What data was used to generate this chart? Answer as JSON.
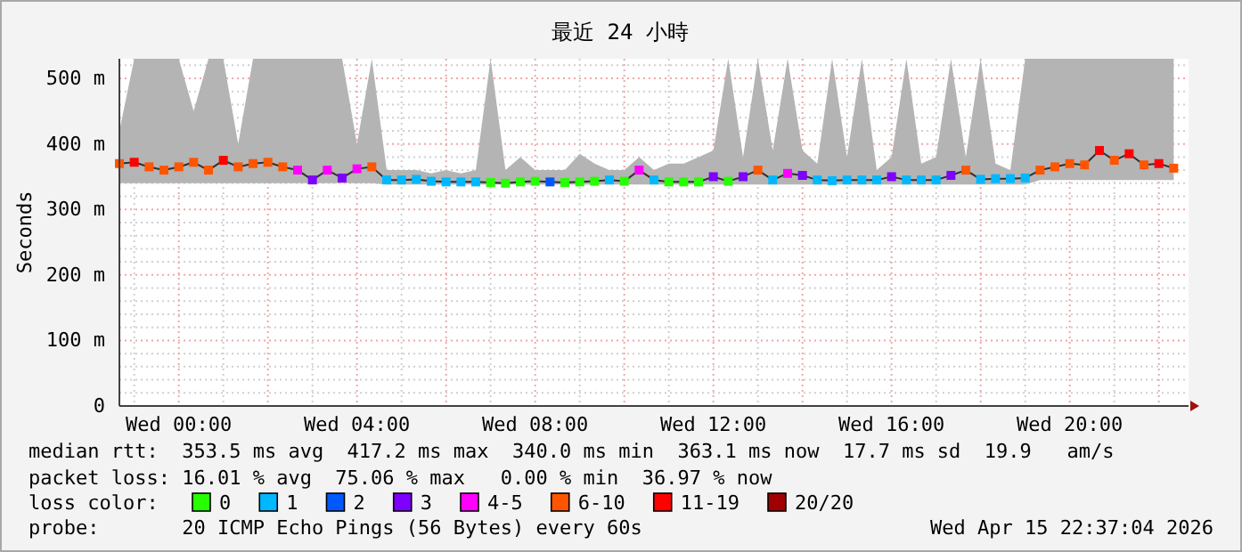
{
  "chart_data": {
    "type": "line",
    "title": "最近 24 小時",
    "ylabel": "Seconds",
    "legend_title": "loss color:",
    "legend": "bottom",
    "grid": true,
    "xlim": [
      "2026-04-14T22:40",
      "2026-04-15T22:40"
    ],
    "ylim": [
      0,
      530
    ],
    "xticks": [
      {
        "value": "2026-04-14T23:00",
        "label": null
      },
      {
        "value": "2026-04-15T00:00",
        "label": "Wed 00:00"
      },
      {
        "value": "2026-04-15T01:00",
        "label": null
      },
      {
        "value": "2026-04-15T02:00",
        "label": null
      },
      {
        "value": "2026-04-15T03:00",
        "label": null
      },
      {
        "value": "2026-04-15T04:00",
        "label": "Wed 04:00"
      },
      {
        "value": "2026-04-15T05:00",
        "label": null
      },
      {
        "value": "2026-04-15T06:00",
        "label": null
      },
      {
        "value": "2026-04-15T07:00",
        "label": null
      },
      {
        "value": "2026-04-15T08:00",
        "label": "Wed 08:00"
      },
      {
        "value": "2026-04-15T09:00",
        "label": null
      },
      {
        "value": "2026-04-15T10:00",
        "label": null
      },
      {
        "value": "2026-04-15T11:00",
        "label": null
      },
      {
        "value": "2026-04-15T12:00",
        "label": "Wed 12:00"
      },
      {
        "value": "2026-04-15T13:00",
        "label": null
      },
      {
        "value": "2026-04-15T14:00",
        "label": null
      },
      {
        "value": "2026-04-15T15:00",
        "label": null
      },
      {
        "value": "2026-04-15T16:00",
        "label": "Wed 16:00"
      },
      {
        "value": "2026-04-15T17:00",
        "label": null
      },
      {
        "value": "2026-04-15T18:00",
        "label": null
      },
      {
        "value": "2026-04-15T19:00",
        "label": null
      },
      {
        "value": "2026-04-15T20:00",
        "label": "Wed 20:00"
      },
      {
        "value": "2026-04-15T21:00",
        "label": null
      },
      {
        "value": "2026-04-15T22:00",
        "label": null
      }
    ],
    "yticks": [
      {
        "value": 0,
        "label": "0"
      },
      {
        "value": 20,
        "label": null
      },
      {
        "value": 40,
        "label": null
      },
      {
        "value": 60,
        "label": null
      },
      {
        "value": 80,
        "label": null
      },
      {
        "value": 100,
        "label": "100 m"
      },
      {
        "value": 120,
        "label": null
      },
      {
        "value": 140,
        "label": null
      },
      {
        "value": 160,
        "label": null
      },
      {
        "value": 180,
        "label": null
      },
      {
        "value": 200,
        "label": "200 m"
      },
      {
        "value": 220,
        "label": null
      },
      {
        "value": 240,
        "label": null
      },
      {
        "value": 260,
        "label": null
      },
      {
        "value": 280,
        "label": null
      },
      {
        "value": 300,
        "label": "300 m"
      },
      {
        "value": 320,
        "label": null
      },
      {
        "value": 340,
        "label": null
      },
      {
        "value": 360,
        "label": null
      },
      {
        "value": 380,
        "label": null
      },
      {
        "value": 400,
        "label": "400 m"
      },
      {
        "value": 420,
        "label": null
      },
      {
        "value": 440,
        "label": null
      },
      {
        "value": 460,
        "label": null
      },
      {
        "value": 480,
        "label": null
      },
      {
        "value": 500,
        "label": "500 m"
      },
      {
        "value": 520,
        "label": null
      }
    ],
    "x": [
      "2026-04-14T22:40",
      "2026-04-14T23:00",
      "2026-04-14T23:20",
      "2026-04-14T23:40",
      "2026-04-15T00:00",
      "2026-04-15T00:20",
      "2026-04-15T00:40",
      "2026-04-15T01:00",
      "2026-04-15T01:20",
      "2026-04-15T01:40",
      "2026-04-15T02:00",
      "2026-04-15T02:20",
      "2026-04-15T02:40",
      "2026-04-15T03:00",
      "2026-04-15T03:20",
      "2026-04-15T03:40",
      "2026-04-15T04:00",
      "2026-04-15T04:20",
      "2026-04-15T04:40",
      "2026-04-15T05:00",
      "2026-04-15T05:20",
      "2026-04-15T05:40",
      "2026-04-15T06:00",
      "2026-04-15T06:20",
      "2026-04-15T06:40",
      "2026-04-15T07:00",
      "2026-04-15T07:20",
      "2026-04-15T07:40",
      "2026-04-15T08:00",
      "2026-04-15T08:20",
      "2026-04-15T08:40",
      "2026-04-15T09:00",
      "2026-04-15T09:20",
      "2026-04-15T09:40",
      "2026-04-15T10:00",
      "2026-04-15T10:20",
      "2026-04-15T10:40",
      "2026-04-15T11:00",
      "2026-04-15T11:20",
      "2026-04-15T11:40",
      "2026-04-15T12:00",
      "2026-04-15T12:20",
      "2026-04-15T12:40",
      "2026-04-15T13:00",
      "2026-04-15T13:20",
      "2026-04-15T13:40",
      "2026-04-15T14:00",
      "2026-04-15T14:20",
      "2026-04-15T14:40",
      "2026-04-15T15:00",
      "2026-04-15T15:20",
      "2026-04-15T15:40",
      "2026-04-15T16:00",
      "2026-04-15T16:20",
      "2026-04-15T16:40",
      "2026-04-15T17:00",
      "2026-04-15T17:20",
      "2026-04-15T17:40",
      "2026-04-15T18:00",
      "2026-04-15T18:20",
      "2026-04-15T18:40",
      "2026-04-15T19:00",
      "2026-04-15T19:20",
      "2026-04-15T19:40",
      "2026-04-15T20:00",
      "2026-04-15T20:20",
      "2026-04-15T20:40",
      "2026-04-15T21:00",
      "2026-04-15T21:20",
      "2026-04-15T21:40",
      "2026-04-15T22:00",
      "2026-04-15T22:20"
    ],
    "series": [
      {
        "color": "#303030",
        "values": [
          370,
          372,
          365,
          360,
          365,
          372,
          360,
          375,
          365,
          370,
          372,
          365,
          360,
          345,
          360,
          348,
          362,
          365,
          345,
          345,
          346,
          343,
          342,
          342,
          342,
          341,
          340,
          342,
          343,
          342,
          341,
          342,
          343,
          345,
          343,
          360,
          345,
          342,
          342,
          342,
          350,
          343,
          350,
          360,
          345,
          355,
          352,
          345,
          344,
          345,
          345,
          345,
          350,
          345,
          345,
          345,
          352,
          360,
          346,
          347,
          347,
          348,
          360,
          365,
          370,
          368,
          390,
          375,
          385,
          368,
          370,
          363
        ],
        "lower": [
          340,
          340,
          340,
          340,
          340,
          340,
          340,
          340,
          340,
          340,
          340,
          340,
          340,
          340,
          340,
          340,
          340,
          340,
          338,
          338,
          338,
          338,
          338,
          338,
          338,
          338,
          338,
          338,
          338,
          338,
          338,
          338,
          338,
          338,
          338,
          338,
          338,
          338,
          338,
          338,
          338,
          338,
          338,
          338,
          338,
          338,
          338,
          338,
          338,
          338,
          338,
          338,
          338,
          338,
          338,
          338,
          338,
          338,
          338,
          338,
          338,
          338,
          345,
          345,
          345,
          345,
          345,
          345,
          345,
          345,
          345,
          345
        ],
        "upper": [
          420,
          530,
          530,
          530,
          530,
          450,
          530,
          530,
          400,
          530,
          530,
          530,
          530,
          530,
          530,
          530,
          400,
          530,
          360,
          360,
          360,
          355,
          360,
          355,
          360,
          530,
          360,
          380,
          360,
          360,
          360,
          385,
          370,
          360,
          360,
          380,
          360,
          370,
          370,
          380,
          390,
          530,
          380,
          530,
          390,
          530,
          390,
          370,
          530,
          380,
          530,
          360,
          380,
          530,
          370,
          380,
          530,
          380,
          530,
          370,
          360,
          530,
          530,
          530,
          530,
          530,
          530,
          530,
          530,
          530,
          530,
          530
        ]
      },
      {
        "type": "scatter",
        "marker": "square",
        "name": "0",
        "color": "#26ff00",
        "values": [
          null,
          null,
          null,
          null,
          null,
          null,
          null,
          null,
          null,
          null,
          null,
          null,
          null,
          null,
          null,
          null,
          null,
          null,
          null,
          null,
          null,
          null,
          null,
          null,
          null,
          341,
          340,
          342,
          343,
          null,
          341,
          342,
          343,
          null,
          343,
          null,
          null,
          342,
          342,
          342,
          null,
          343,
          null,
          null,
          null,
          null,
          null,
          null,
          null,
          null,
          null,
          null,
          null,
          null,
          null,
          null,
          null,
          null,
          null,
          null,
          null,
          null,
          null,
          null,
          null,
          null,
          null,
          null,
          null,
          null,
          null,
          null
        ]
      },
      {
        "type": "scatter",
        "marker": "square",
        "name": "1",
        "color": "#00b8ff",
        "values": [
          null,
          null,
          null,
          null,
          null,
          null,
          null,
          null,
          null,
          null,
          null,
          null,
          null,
          null,
          null,
          null,
          null,
          null,
          345,
          345,
          346,
          343,
          342,
          342,
          342,
          null,
          null,
          null,
          null,
          null,
          null,
          null,
          null,
          345,
          null,
          null,
          345,
          null,
          null,
          null,
          null,
          null,
          null,
          null,
          345,
          null,
          null,
          345,
          344,
          345,
          345,
          345,
          null,
          345,
          345,
          345,
          null,
          null,
          346,
          347,
          347,
          348,
          null,
          null,
          null,
          null,
          null,
          null,
          null,
          null,
          null,
          null
        ]
      },
      {
        "type": "scatter",
        "marker": "square",
        "name": "2",
        "color": "#0059ff",
        "values": [
          null,
          null,
          null,
          null,
          null,
          null,
          null,
          null,
          null,
          null,
          null,
          null,
          null,
          null,
          null,
          null,
          null,
          null,
          null,
          null,
          null,
          null,
          null,
          null,
          null,
          null,
          null,
          null,
          null,
          342,
          null,
          null,
          null,
          null,
          null,
          null,
          null,
          null,
          null,
          null,
          null,
          null,
          null,
          null,
          null,
          null,
          null,
          null,
          null,
          null,
          null,
          null,
          null,
          null,
          null,
          null,
          null,
          null,
          null,
          null,
          null,
          null,
          null,
          null,
          null,
          null,
          null,
          null,
          null,
          null,
          null,
          null
        ]
      },
      {
        "type": "scatter",
        "marker": "square",
        "name": "3",
        "color": "#7e00ff",
        "values": [
          null,
          null,
          null,
          null,
          null,
          null,
          null,
          null,
          null,
          null,
          null,
          null,
          null,
          345,
          null,
          348,
          null,
          null,
          null,
          null,
          null,
          null,
          null,
          null,
          null,
          null,
          null,
          null,
          null,
          null,
          null,
          null,
          null,
          null,
          null,
          null,
          null,
          null,
          null,
          null,
          350,
          null,
          350,
          null,
          null,
          null,
          352,
          null,
          null,
          null,
          null,
          null,
          350,
          null,
          null,
          null,
          352,
          null,
          null,
          null,
          null,
          null,
          null,
          null,
          null,
          null,
          null,
          null,
          null,
          null,
          null,
          null
        ]
      },
      {
        "type": "scatter",
        "marker": "square",
        "name": "4-5",
        "color": "#ff00ff",
        "values": [
          null,
          null,
          null,
          null,
          null,
          null,
          null,
          null,
          null,
          null,
          null,
          null,
          360,
          null,
          360,
          null,
          362,
          null,
          null,
          null,
          null,
          null,
          null,
          null,
          null,
          null,
          null,
          null,
          null,
          null,
          null,
          null,
          null,
          null,
          null,
          360,
          null,
          null,
          null,
          null,
          null,
          null,
          null,
          null,
          null,
          355,
          null,
          null,
          null,
          null,
          null,
          null,
          null,
          null,
          null,
          null,
          null,
          null,
          null,
          null,
          null,
          null,
          null,
          null,
          null,
          null,
          null,
          null,
          null,
          null,
          null,
          null
        ]
      },
      {
        "type": "scatter",
        "marker": "square",
        "name": "6-10",
        "color": "#ff5500",
        "values": [
          370,
          null,
          365,
          360,
          365,
          372,
          360,
          null,
          365,
          370,
          372,
          365,
          null,
          null,
          null,
          null,
          null,
          365,
          null,
          null,
          null,
          null,
          null,
          null,
          null,
          null,
          null,
          null,
          null,
          null,
          null,
          null,
          null,
          null,
          null,
          null,
          null,
          null,
          null,
          null,
          null,
          null,
          null,
          360,
          null,
          null,
          null,
          null,
          null,
          null,
          null,
          null,
          null,
          null,
          null,
          null,
          null,
          360,
          null,
          null,
          null,
          null,
          360,
          365,
          370,
          368,
          null,
          375,
          null,
          368,
          null,
          363
        ]
      },
      {
        "type": "scatter",
        "marker": "square",
        "name": "11-19",
        "color": "#ff0000",
        "values": [
          null,
          372,
          null,
          null,
          null,
          null,
          null,
          375,
          null,
          null,
          null,
          null,
          null,
          null,
          null,
          null,
          null,
          null,
          null,
          null,
          null,
          null,
          null,
          null,
          null,
          null,
          null,
          null,
          null,
          null,
          null,
          null,
          null,
          null,
          null,
          null,
          null,
          null,
          null,
          null,
          null,
          null,
          null,
          null,
          null,
          null,
          null,
          null,
          null,
          null,
          null,
          null,
          null,
          null,
          null,
          null,
          null,
          null,
          null,
          null,
          null,
          null,
          null,
          null,
          null,
          null,
          390,
          null,
          385,
          null,
          370,
          null
        ]
      },
      {
        "type": "scatter",
        "marker": "square",
        "name": "20/20",
        "color": "#a10000",
        "values": [
          null,
          null,
          null,
          null,
          null,
          null,
          null,
          null,
          null,
          null,
          null,
          null,
          null,
          null,
          null,
          null,
          null,
          null,
          null,
          null,
          null,
          null,
          null,
          null,
          null,
          null,
          null,
          null,
          null,
          null,
          null,
          null,
          null,
          null,
          null,
          null,
          null,
          null,
          null,
          null,
          null,
          null,
          null,
          null,
          null,
          null,
          null,
          null,
          null,
          null,
          null,
          null,
          null,
          null,
          null,
          null,
          null,
          null,
          null,
          null,
          null,
          null,
          null,
          null,
          null,
          null,
          null,
          null,
          null,
          null,
          null,
          null
        ]
      }
    ],
    "annotations": [
      "median rtt:  353.5 ms avg  417.2 ms max  340.0 ms min  363.1 ms now  17.7 ms sd  19.9   am/s",
      "packet loss: 16.01 % avg  75.06 % max   0.00 % min  36.97 % now",
      "probe:       20 ICMP Echo Pings (56 Bytes) every 60s",
      "Wed Apr 15 22:37:04 2026"
    ]
  }
}
